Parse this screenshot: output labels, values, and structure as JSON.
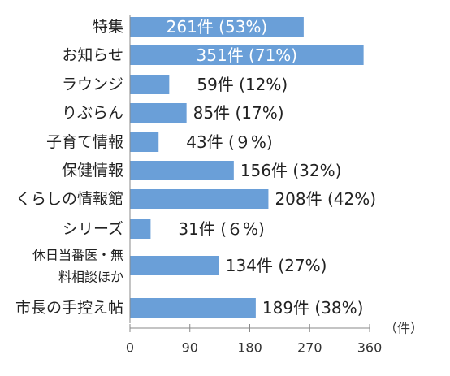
{
  "chart_data": {
    "type": "bar",
    "orientation": "horizontal",
    "categories": [
      [
        "特集"
      ],
      [
        "お知らせ"
      ],
      [
        "ラウンジ"
      ],
      [
        "りぶらん"
      ],
      [
        "子育て情報"
      ],
      [
        "保健情報"
      ],
      [
        "くらしの情報館"
      ],
      [
        "シリーズ"
      ],
      [
        "休日当番医・無",
        "料相談ほか"
      ],
      [
        "市長の手控え帖"
      ]
    ],
    "values": [
      261,
      351,
      59,
      85,
      43,
      156,
      208,
      31,
      134,
      189
    ],
    "data_labels": [
      "261件 (53%)",
      "351件 (71%)",
      "59件 (12%)",
      "85件 (17%)",
      "43件 (９%)",
      "156件 (32%)",
      "208件 (42%)",
      "31件 (６%)",
      "134件 (27%)",
      "189件 (38%)"
    ],
    "xlim": [
      0,
      360
    ],
    "xticks": [
      0,
      90,
      180,
      270,
      360
    ],
    "xunit": "（件）",
    "grid": false,
    "colors": {
      "bar": "#6a9fd8",
      "inside_label": "#ffffff",
      "outside_label": "#222222",
      "axis": "#888888"
    }
  }
}
